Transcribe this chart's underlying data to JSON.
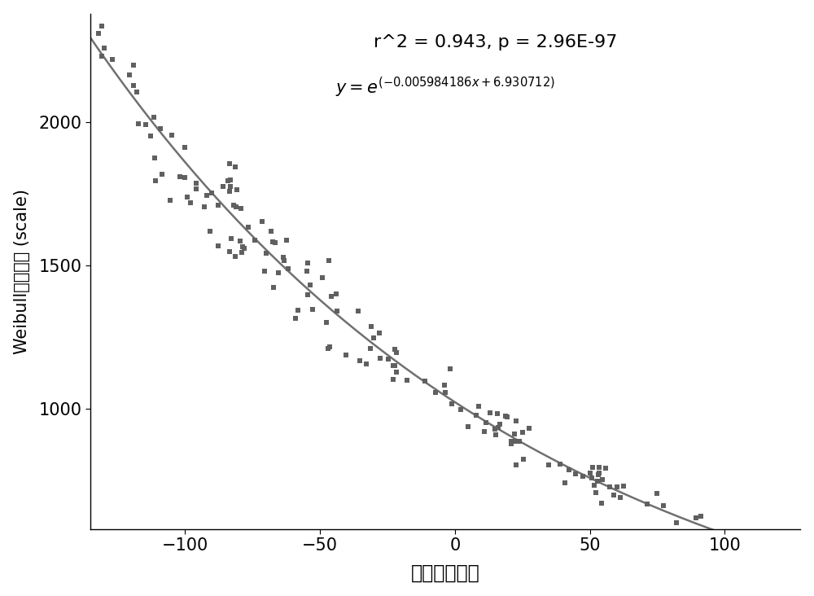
{
  "title": "r^2 = 0.943, p = 2.96E-97",
  "xlabel": "平均风险得分",
  "ylabel": "Weibull分布参数 (scale)",
  "xlim": [
    -135,
    128
  ],
  "ylim": [
    580,
    2380
  ],
  "yticks": [
    1000,
    1500,
    2000
  ],
  "xticks": [
    -100,
    -50,
    0,
    50,
    100
  ],
  "dot_color": "#606060",
  "line_color": "#707070",
  "background_color": "#ffffff",
  "a": -0.005984186,
  "b": 6.930712,
  "scatter_seed": 7,
  "noise_scale": 0.055
}
